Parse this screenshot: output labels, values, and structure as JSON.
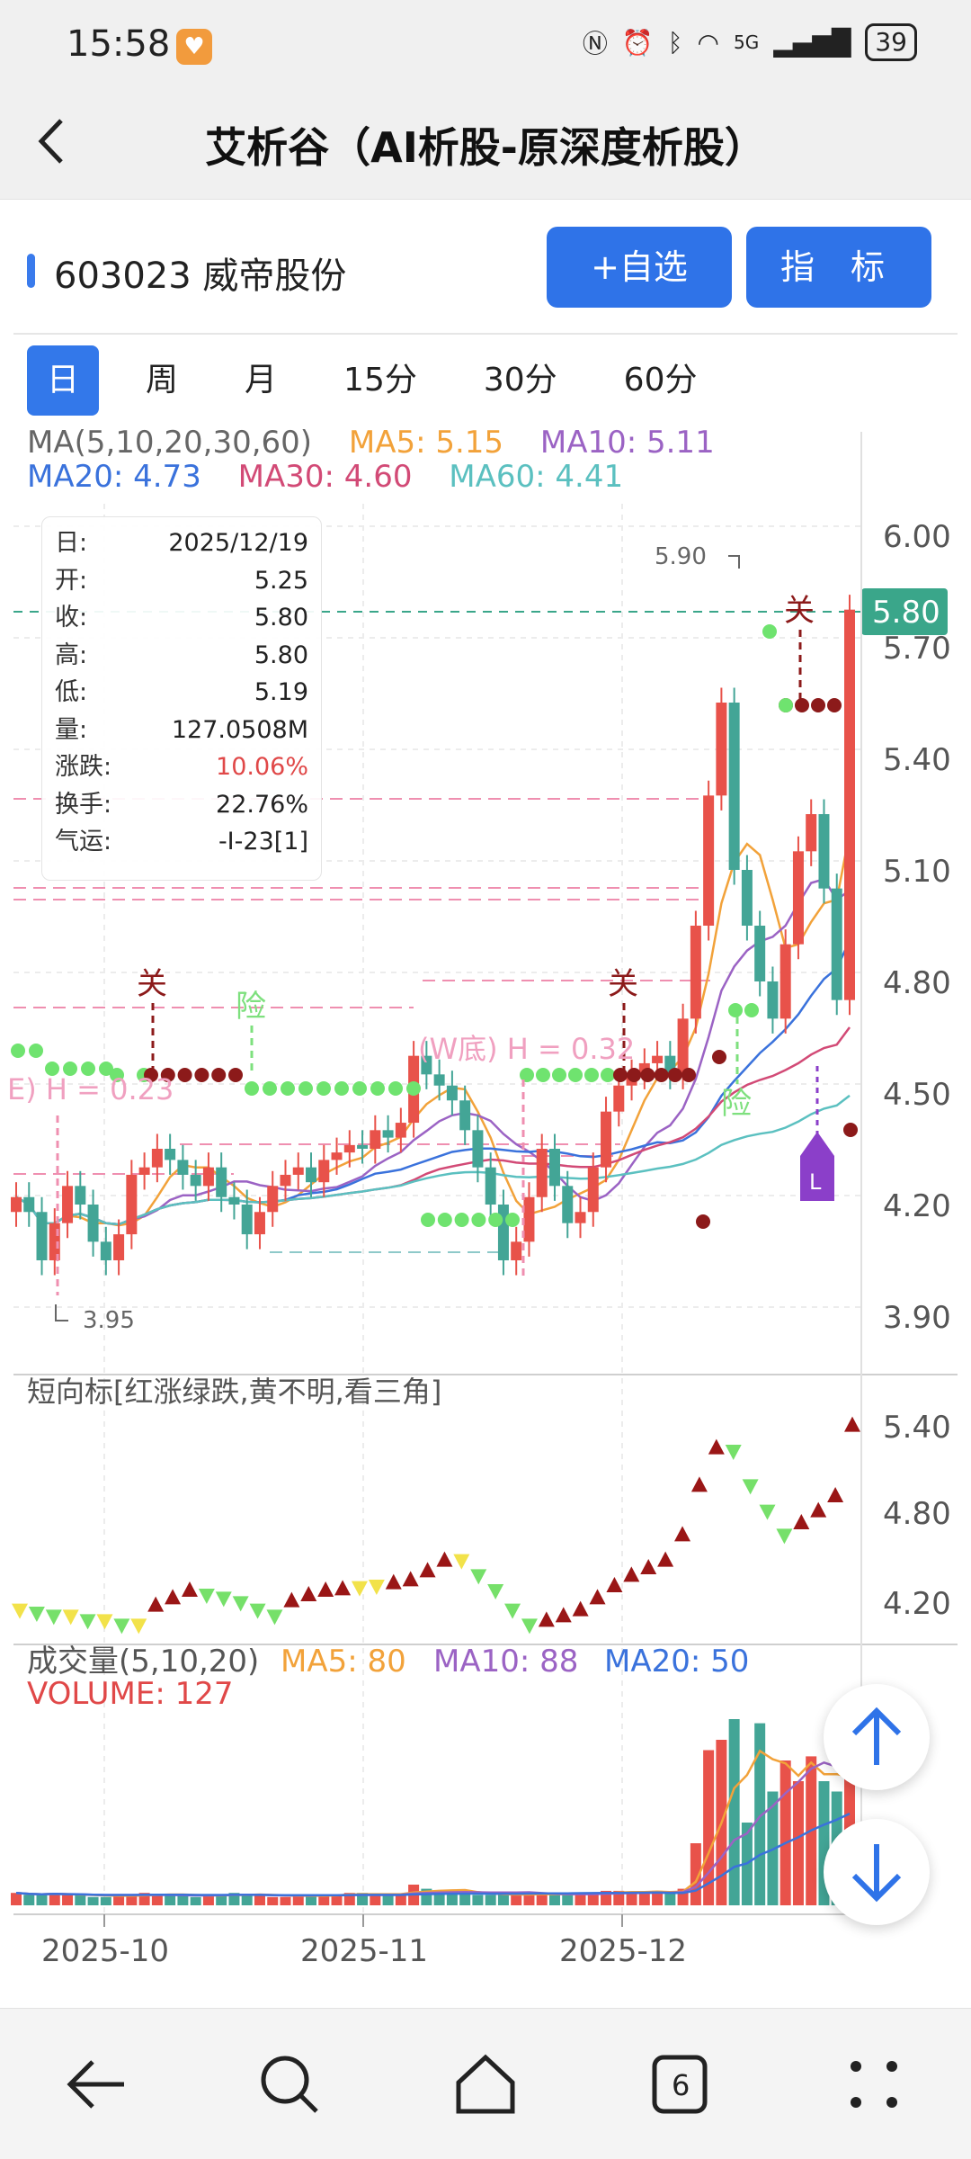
{
  "status_bar": {
    "time": "15:58",
    "battery": "39",
    "network": "5G"
  },
  "header": {
    "title": "艾析谷（AI析股-原深度析股）"
  },
  "stock": {
    "code_name": "603023 威帝股份"
  },
  "buttons": {
    "add_watchlist": "+自选",
    "indicator": "指 标"
  },
  "period_tabs": [
    "日",
    "周",
    "月",
    "15分",
    "30分",
    "60分"
  ],
  "ma_legend": {
    "title": "MA(5,10,20,30,60)",
    "ma5": "MA5: 5.15",
    "ma10": "MA10: 5.11",
    "ma20": "MA20: 4.73",
    "ma30": "MA30: 4.60",
    "ma60": "MA60: 4.41"
  },
  "info_box": {
    "rows": [
      {
        "label": "日:",
        "value": "2025/12/19"
      },
      {
        "label": "开:",
        "value": "5.25"
      },
      {
        "label": "收:",
        "value": "5.80"
      },
      {
        "label": "高:",
        "value": "5.80"
      },
      {
        "label": "低:",
        "value": "5.19"
      },
      {
        "label": "量:",
        "value": "127.0508M"
      },
      {
        "label": "涨跌:",
        "value": "10.06%"
      },
      {
        "label": "换手:",
        "value": "22.76%"
      },
      {
        "label": "气运:",
        "value": "-I-23[1]"
      }
    ]
  },
  "price_axis": [
    "6.00",
    "5.70",
    "5.40",
    "5.10",
    "4.80",
    "4.50",
    "4.20",
    "3.90"
  ],
  "price_labels": {
    "current": "5.80",
    "high": "5.90",
    "low": "3.95"
  },
  "annotations": {
    "guan": "关",
    "xian": "险",
    "w_bottom": "(W底) H = 0.32",
    "w_left": "E) H = 0.23",
    "l_marker": "L"
  },
  "short_indicator": {
    "title": "短向标[红涨绿跌,黄不明,看三角]",
    "axis": [
      "5.40",
      "4.80",
      "4.20"
    ]
  },
  "volume": {
    "title": "成交量(5,10,20)",
    "ma5": "MA5: 80",
    "ma10": "MA10: 88",
    "ma20": "MA20: 50",
    "volume": "VOLUME: 127"
  },
  "date_axis": [
    "2025-10",
    "2025-11",
    "2025-12"
  ],
  "bottom_nav": {
    "tabs_count": "6"
  },
  "colors": {
    "up": "#e8524a",
    "down": "#43a596",
    "ma5": "#f2a23a",
    "ma10": "#9b63c4",
    "ma20": "#3a72dc",
    "ma30": "#d24a76",
    "ma60": "#5bc0c0",
    "accent": "#2f73e8"
  }
}
